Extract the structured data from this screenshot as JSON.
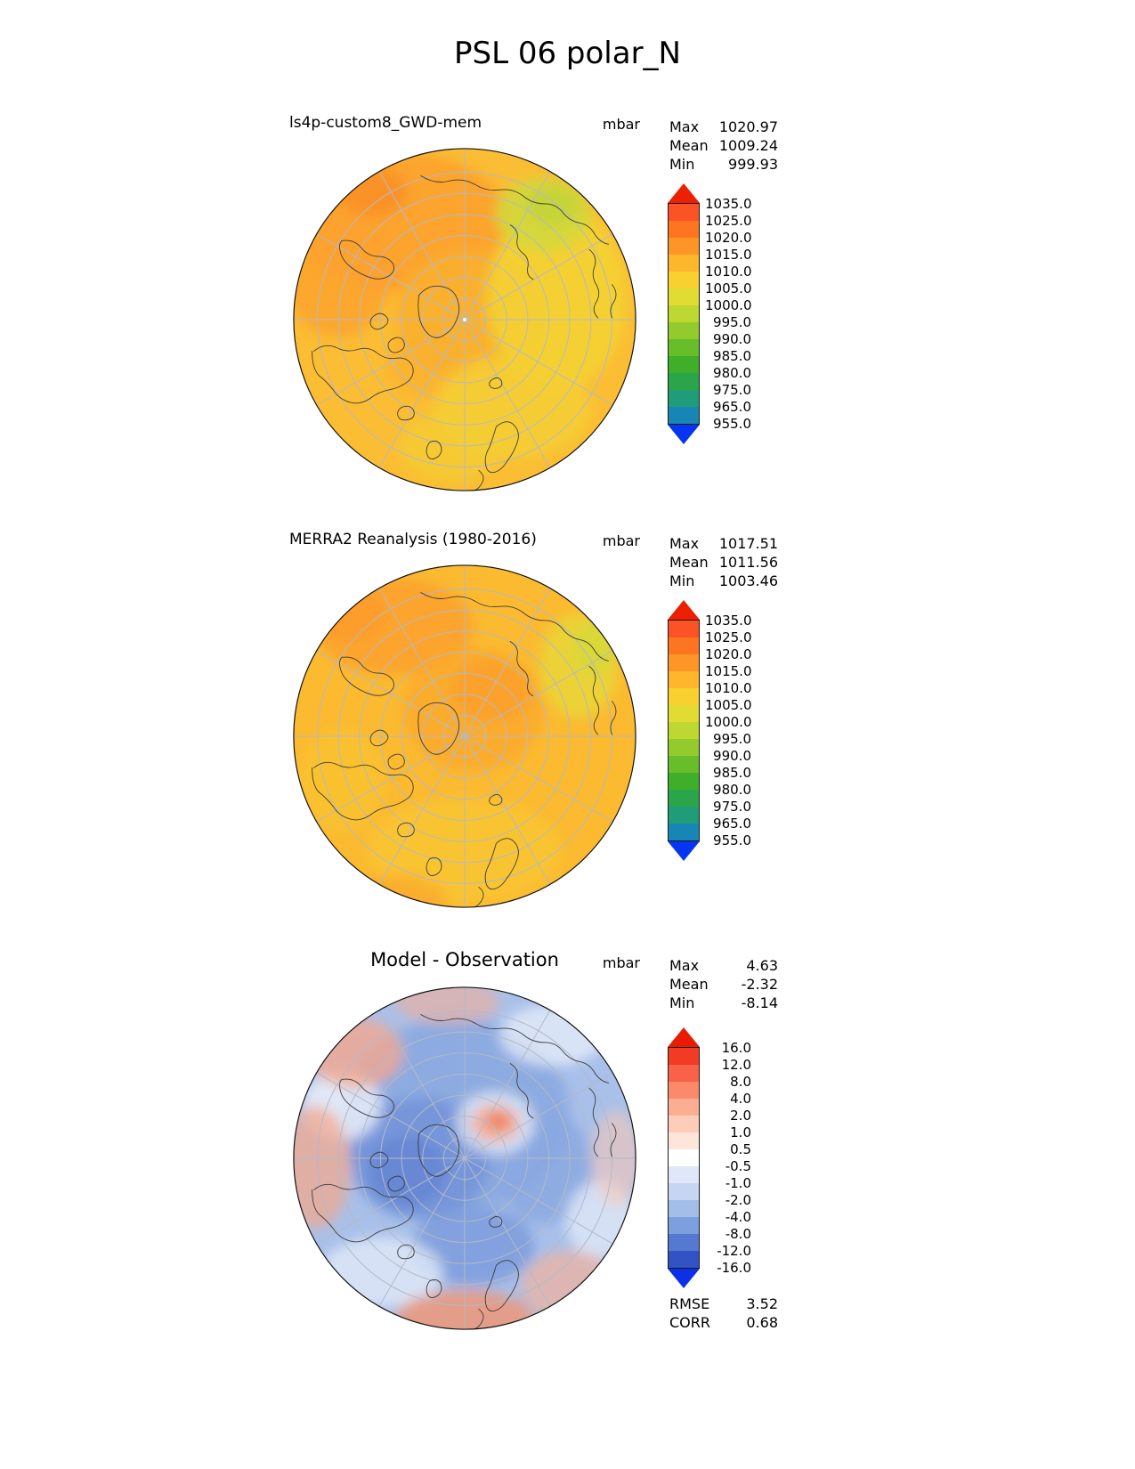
{
  "title": "PSL 06 polar_N",
  "panels": [
    {
      "name": "model",
      "map_title": "ls4p-custom8_GWD-mem",
      "units": "mbar",
      "stats": [
        {
          "label": "Max",
          "value": "1020.97"
        },
        {
          "label": "Mean",
          "value": "1009.24"
        },
        {
          "label": "Min",
          "value": "999.93"
        }
      ],
      "colorbar": {
        "arrow_top": "#ec2000",
        "arrow_bottom": "#0535f0",
        "segment_colors": [
          "#fb5226",
          "#fd7520",
          "#fe9627",
          "#feb72c",
          "#f8d02f",
          "#e0dc34",
          "#bcd831",
          "#93cb2e",
          "#68bd2b",
          "#3fae28",
          "#2aa54a",
          "#219c78",
          "#1886b4"
        ],
        "tick_labels": [
          "1035.0",
          "1025.0",
          "1020.0",
          "1015.0",
          "1010.0",
          "1005.0",
          "1000.0",
          "995.0",
          "990.0",
          "985.0",
          "980.0",
          "975.0",
          "965.0",
          "955.0"
        ]
      },
      "map": {
        "base_color": "#fbbd33",
        "center_dot": true,
        "blobs": [
          [
            130,
            90,
            120,
            80,
            "#fca12d",
            0.9
          ],
          [
            55,
            150,
            60,
            70,
            "#fca12d",
            0.8
          ],
          [
            95,
            55,
            40,
            28,
            "#fc8f28",
            0.85
          ],
          [
            205,
            195,
            85,
            75,
            "#fbaf2e",
            0.9
          ],
          [
            160,
            250,
            50,
            40,
            "#fbb02e",
            0.7
          ],
          [
            305,
            175,
            80,
            105,
            "#f3d434",
            0.85
          ],
          [
            255,
            300,
            90,
            60,
            "#f5cf33",
            0.8
          ],
          [
            185,
            345,
            60,
            40,
            "#f4cf33",
            0.7
          ],
          [
            290,
            80,
            55,
            42,
            "#d3d83c",
            0.9
          ],
          [
            300,
            70,
            30,
            22,
            "#c3d438",
            0.9
          ]
        ]
      }
    },
    {
      "name": "reanalysis",
      "map_title": "MERRA2 Reanalysis (1980-2016)",
      "units": "mbar",
      "stats": [
        {
          "label": "Max",
          "value": "1017.51"
        },
        {
          "label": "Mean",
          "value": "1011.56"
        },
        {
          "label": "Min",
          "value": "1003.46"
        }
      ],
      "colorbar": {
        "arrow_top": "#ec2000",
        "arrow_bottom": "#0535f0",
        "segment_colors": [
          "#fb5226",
          "#fd7520",
          "#fe9627",
          "#feb72c",
          "#f8d02f",
          "#e0dc34",
          "#bcd831",
          "#93cb2e",
          "#68bd2b",
          "#3fae28",
          "#2aa54a",
          "#219c78",
          "#1886b4"
        ],
        "tick_labels": [
          "1035.0",
          "1025.0",
          "1020.0",
          "1015.0",
          "1010.0",
          "1005.0",
          "1000.0",
          "995.0",
          "990.0",
          "985.0",
          "980.0",
          "975.0",
          "965.0",
          "955.0"
        ]
      },
      "map": {
        "base_color": "#fbba30",
        "center_dot": false,
        "blobs": [
          [
            120,
            75,
            90,
            55,
            "#fca22d",
            0.9
          ],
          [
            70,
            60,
            40,
            30,
            "#fc9b2a",
            0.8
          ],
          [
            210,
            170,
            80,
            70,
            "#fbab2c",
            0.9
          ],
          [
            230,
            148,
            45,
            35,
            "#fc9e2a",
            0.8
          ],
          [
            330,
            120,
            45,
            60,
            "#e8d837",
            0.8
          ],
          [
            347,
            100,
            25,
            30,
            "#d6d93a",
            0.85
          ],
          [
            200,
            330,
            110,
            60,
            "#f8c832",
            0.7
          ],
          [
            60,
            250,
            50,
            60,
            "#f9c331",
            0.7
          ],
          [
            120,
            388,
            60,
            30,
            "#fca42c",
            0.6
          ]
        ]
      }
    },
    {
      "name": "difference",
      "map_title": "Model - Observation",
      "units": "mbar",
      "stats": [
        {
          "label": "Max",
          "value": "4.63"
        },
        {
          "label": "Mean",
          "value": "-2.32"
        },
        {
          "label": "Min",
          "value": "-8.14"
        }
      ],
      "colorbar": {
        "arrow_top": "#ea1c00",
        "arrow_bottom": "#0d2fe8",
        "segment_colors": [
          "#f23b25",
          "#f96248",
          "#fb8a6a",
          "#fcae92",
          "#fdcdb9",
          "#fee5da",
          "#ffffff",
          "#e0e7f8",
          "#c6d5f2",
          "#a3bfe9",
          "#7d9fdd",
          "#5578d0",
          "#3353c4"
        ],
        "tick_labels": [
          "16.0",
          "12.0",
          "8.0",
          "4.0",
          "2.0",
          "1.0",
          "0.5",
          "-0.5",
          "-1.0",
          "-2.0",
          "-4.0",
          "-8.0",
          "-12.0",
          "-16.0"
        ]
      },
      "map": {
        "base_color": "#a8c0ea",
        "center_dot": false,
        "blobs": [
          [
            190,
            150,
            130,
            110,
            "#8aa8e0",
            0.9
          ],
          [
            150,
            200,
            80,
            70,
            "#7495d9",
            0.9
          ],
          [
            135,
            215,
            45,
            40,
            "#6585d3",
            0.85
          ],
          [
            210,
            300,
            70,
            45,
            "#7d9cdc",
            0.85
          ],
          [
            290,
            210,
            55,
            65,
            "#89a7e0",
            0.8
          ],
          [
            105,
            330,
            70,
            40,
            "#e9eff9",
            0.7
          ],
          [
            60,
            140,
            45,
            40,
            "#f3f6fc",
            0.75
          ],
          [
            300,
            60,
            60,
            35,
            "#eef2fb",
            0.7
          ],
          [
            355,
            270,
            40,
            45,
            "#f1f5fc",
            0.6
          ],
          [
            235,
            160,
            45,
            36,
            "#ffffff",
            0.6
          ],
          [
            75,
            80,
            55,
            40,
            "#f2a88f",
            0.8
          ],
          [
            30,
            210,
            40,
            70,
            "#f2a88f",
            0.75
          ],
          [
            200,
            385,
            80,
            35,
            "#ee9678",
            0.85
          ],
          [
            320,
            345,
            55,
            40,
            "#f4b29b",
            0.7
          ],
          [
            373,
            200,
            28,
            55,
            "#f7c7b5",
            0.6
          ],
          [
            180,
            22,
            60,
            25,
            "#f4ae95",
            0.6
          ],
          [
            235,
            160,
            28,
            22,
            "#f6b39c",
            0.9
          ],
          [
            238,
            158,
            15,
            11,
            "#ee7f60",
            0.9
          ]
        ]
      }
    }
  ],
  "skill_stats": [
    {
      "label": "RMSE",
      "value": "3.52"
    },
    {
      "label": "CORR",
      "value": "0.68"
    }
  ],
  "chart_data": [
    {
      "type": "heatmap",
      "title": "ls4p-custom8_GWD-mem",
      "units": "mbar",
      "projection": "north-polar-stereographic",
      "variable": "PSL",
      "stats": {
        "max": 1020.97,
        "mean": 1009.24,
        "min": 999.93
      },
      "contour_levels": [
        955.0,
        965.0,
        975.0,
        980.0,
        985.0,
        990.0,
        995.0,
        1000.0,
        1005.0,
        1010.0,
        1015.0,
        1020.0,
        1025.0,
        1035.0
      ],
      "colormap": "rainbow (blue-green-yellow-orange-red)",
      "legend_position": "right"
    },
    {
      "type": "heatmap",
      "title": "MERRA2 Reanalysis (1980-2016)",
      "units": "mbar",
      "projection": "north-polar-stereographic",
      "variable": "PSL",
      "stats": {
        "max": 1017.51,
        "mean": 1011.56,
        "min": 1003.46
      },
      "contour_levels": [
        955.0,
        965.0,
        975.0,
        980.0,
        985.0,
        990.0,
        995.0,
        1000.0,
        1005.0,
        1010.0,
        1015.0,
        1020.0,
        1025.0,
        1035.0
      ],
      "colormap": "rainbow (blue-green-yellow-orange-red)",
      "legend_position": "right"
    },
    {
      "type": "heatmap",
      "title": "Model - Observation",
      "units": "mbar",
      "projection": "north-polar-stereographic",
      "variable": "PSL difference",
      "stats": {
        "max": 4.63,
        "mean": -2.32,
        "min": -8.14,
        "rmse": 3.52,
        "corr": 0.68
      },
      "contour_levels": [
        -16.0,
        -12.0,
        -8.0,
        -4.0,
        -2.0,
        -1.0,
        -0.5,
        0.5,
        1.0,
        2.0,
        4.0,
        8.0,
        12.0,
        16.0
      ],
      "colormap": "red-white-blue diverging",
      "legend_position": "right"
    }
  ]
}
